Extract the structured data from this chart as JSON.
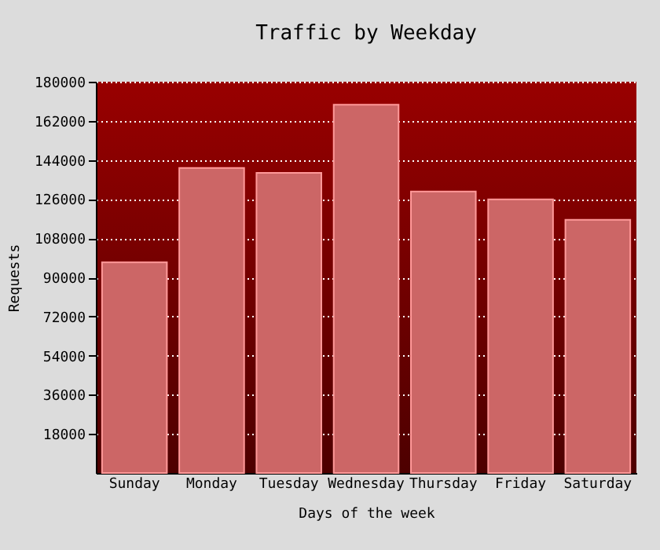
{
  "chart_data": {
    "type": "bar",
    "title": "Traffic by Weekday",
    "xlabel": "Days of the week",
    "ylabel": "Requests",
    "categories": [
      "Sunday",
      "Monday",
      "Tuesday",
      "Wednesday",
      "Thursday",
      "Friday",
      "Saturday"
    ],
    "values": [
      97000,
      140300,
      138100,
      169400,
      129500,
      125900,
      116500
    ],
    "color": "#cc6666",
    "ylim": [
      0,
      180000
    ],
    "yticks": [
      18000,
      36000,
      54000,
      72000,
      90000,
      108000,
      126000,
      144000,
      162000,
      180000
    ],
    "grid": "y"
  }
}
